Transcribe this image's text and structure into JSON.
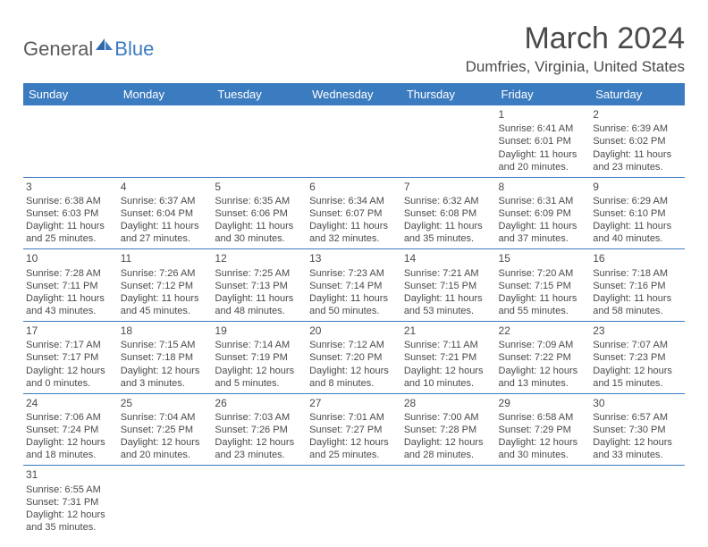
{
  "brand": {
    "general": "General",
    "blue": "Blue"
  },
  "title": "March 2024",
  "location": "Dumfries, Virginia, United States",
  "colors": {
    "header_bg": "#3b7bbf",
    "header_fg": "#ffffff",
    "rule": "#3b7bbf",
    "text": "#4a4a4a",
    "page_bg": "#ffffff"
  },
  "typography": {
    "title_fontsize": 34,
    "location_fontsize": 17,
    "weekday_fontsize": 13,
    "cell_fontsize": 11
  },
  "layout": {
    "columns": 7,
    "rows": 6,
    "start_day_index": 5
  },
  "weekdays": [
    "Sunday",
    "Monday",
    "Tuesday",
    "Wednesday",
    "Thursday",
    "Friday",
    "Saturday"
  ],
  "field_labels": {
    "sunrise": "Sunrise:",
    "sunset": "Sunset:",
    "daylight": "Daylight:"
  },
  "days": [
    {
      "n": 1,
      "sunrise": "6:41 AM",
      "sunset": "6:01 PM",
      "daylight": "11 hours and 20 minutes."
    },
    {
      "n": 2,
      "sunrise": "6:39 AM",
      "sunset": "6:02 PM",
      "daylight": "11 hours and 23 minutes."
    },
    {
      "n": 3,
      "sunrise": "6:38 AM",
      "sunset": "6:03 PM",
      "daylight": "11 hours and 25 minutes."
    },
    {
      "n": 4,
      "sunrise": "6:37 AM",
      "sunset": "6:04 PM",
      "daylight": "11 hours and 27 minutes."
    },
    {
      "n": 5,
      "sunrise": "6:35 AM",
      "sunset": "6:06 PM",
      "daylight": "11 hours and 30 minutes."
    },
    {
      "n": 6,
      "sunrise": "6:34 AM",
      "sunset": "6:07 PM",
      "daylight": "11 hours and 32 minutes."
    },
    {
      "n": 7,
      "sunrise": "6:32 AM",
      "sunset": "6:08 PM",
      "daylight": "11 hours and 35 minutes."
    },
    {
      "n": 8,
      "sunrise": "6:31 AM",
      "sunset": "6:09 PM",
      "daylight": "11 hours and 37 minutes."
    },
    {
      "n": 9,
      "sunrise": "6:29 AM",
      "sunset": "6:10 PM",
      "daylight": "11 hours and 40 minutes."
    },
    {
      "n": 10,
      "sunrise": "7:28 AM",
      "sunset": "7:11 PM",
      "daylight": "11 hours and 43 minutes."
    },
    {
      "n": 11,
      "sunrise": "7:26 AM",
      "sunset": "7:12 PM",
      "daylight": "11 hours and 45 minutes."
    },
    {
      "n": 12,
      "sunrise": "7:25 AM",
      "sunset": "7:13 PM",
      "daylight": "11 hours and 48 minutes."
    },
    {
      "n": 13,
      "sunrise": "7:23 AM",
      "sunset": "7:14 PM",
      "daylight": "11 hours and 50 minutes."
    },
    {
      "n": 14,
      "sunrise": "7:21 AM",
      "sunset": "7:15 PM",
      "daylight": "11 hours and 53 minutes."
    },
    {
      "n": 15,
      "sunrise": "7:20 AM",
      "sunset": "7:15 PM",
      "daylight": "11 hours and 55 minutes."
    },
    {
      "n": 16,
      "sunrise": "7:18 AM",
      "sunset": "7:16 PM",
      "daylight": "11 hours and 58 minutes."
    },
    {
      "n": 17,
      "sunrise": "7:17 AM",
      "sunset": "7:17 PM",
      "daylight": "12 hours and 0 minutes."
    },
    {
      "n": 18,
      "sunrise": "7:15 AM",
      "sunset": "7:18 PM",
      "daylight": "12 hours and 3 minutes."
    },
    {
      "n": 19,
      "sunrise": "7:14 AM",
      "sunset": "7:19 PM",
      "daylight": "12 hours and 5 minutes."
    },
    {
      "n": 20,
      "sunrise": "7:12 AM",
      "sunset": "7:20 PM",
      "daylight": "12 hours and 8 minutes."
    },
    {
      "n": 21,
      "sunrise": "7:11 AM",
      "sunset": "7:21 PM",
      "daylight": "12 hours and 10 minutes."
    },
    {
      "n": 22,
      "sunrise": "7:09 AM",
      "sunset": "7:22 PM",
      "daylight": "12 hours and 13 minutes."
    },
    {
      "n": 23,
      "sunrise": "7:07 AM",
      "sunset": "7:23 PM",
      "daylight": "12 hours and 15 minutes."
    },
    {
      "n": 24,
      "sunrise": "7:06 AM",
      "sunset": "7:24 PM",
      "daylight": "12 hours and 18 minutes."
    },
    {
      "n": 25,
      "sunrise": "7:04 AM",
      "sunset": "7:25 PM",
      "daylight": "12 hours and 20 minutes."
    },
    {
      "n": 26,
      "sunrise": "7:03 AM",
      "sunset": "7:26 PM",
      "daylight": "12 hours and 23 minutes."
    },
    {
      "n": 27,
      "sunrise": "7:01 AM",
      "sunset": "7:27 PM",
      "daylight": "12 hours and 25 minutes."
    },
    {
      "n": 28,
      "sunrise": "7:00 AM",
      "sunset": "7:28 PM",
      "daylight": "12 hours and 28 minutes."
    },
    {
      "n": 29,
      "sunrise": "6:58 AM",
      "sunset": "7:29 PM",
      "daylight": "12 hours and 30 minutes."
    },
    {
      "n": 30,
      "sunrise": "6:57 AM",
      "sunset": "7:30 PM",
      "daylight": "12 hours and 33 minutes."
    },
    {
      "n": 31,
      "sunrise": "6:55 AM",
      "sunset": "7:31 PM",
      "daylight": "12 hours and 35 minutes."
    }
  ]
}
